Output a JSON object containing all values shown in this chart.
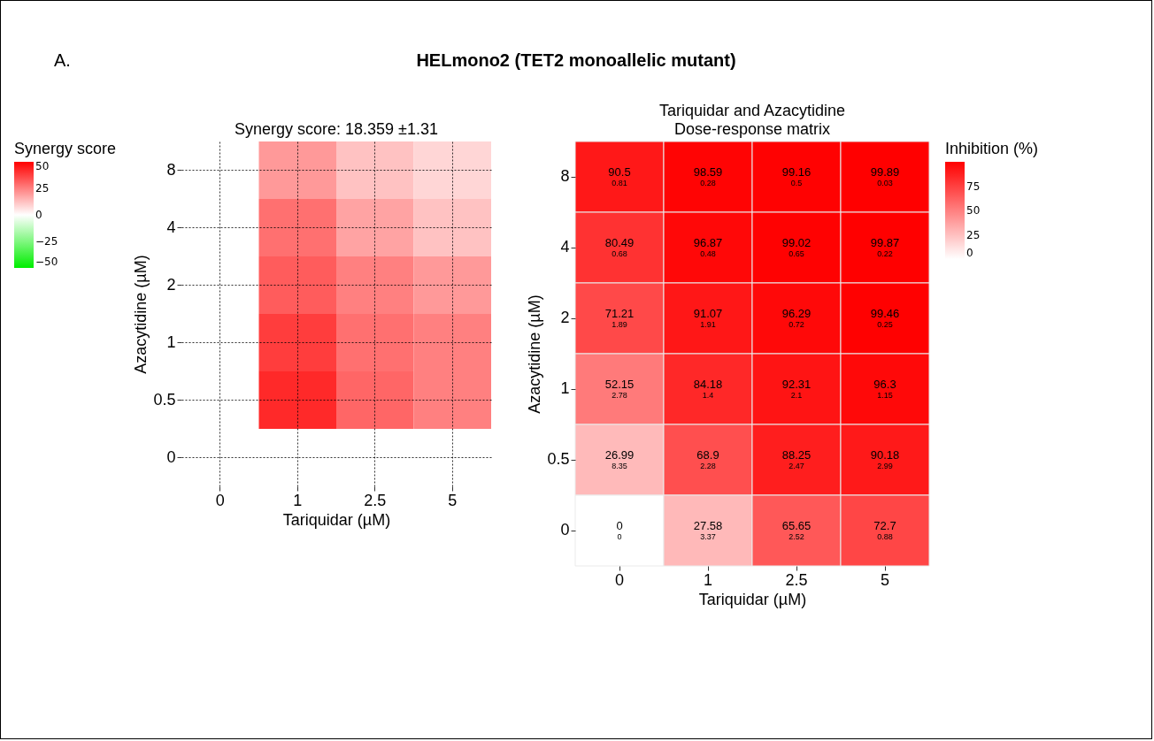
{
  "chart_data": [
    {
      "type": "heatmap",
      "title": "Synergy score: 18.359 ±1.31",
      "xlabel": "Tariquidar (µM)",
      "ylabel": "Azacytidine (µM)",
      "clabel": "Synergy score",
      "annotations": [
        "A.",
        "HELmono2 (TET2 monoallelic mutant)"
      ],
      "categories": [
        "0",
        "1",
        "2.5",
        "5"
      ],
      "y_categories": [
        "8",
        "4",
        "2",
        "1",
        "0.5",
        "0"
      ],
      "cells": [
        [
          0,
          20,
          12,
          8
        ],
        [
          0,
          28,
          18,
          12
        ],
        [
          0,
          32,
          25,
          20
        ],
        [
          0,
          38,
          28,
          25
        ],
        [
          0,
          42,
          30,
          25
        ],
        [
          0,
          0,
          0,
          0
        ]
      ],
      "clim": [
        -50,
        50
      ],
      "cticks": [
        -50,
        -25,
        0,
        25,
        50
      ],
      "grid": true
    },
    {
      "type": "heatmap",
      "title": "Tariquidar and Azacytidine",
      "subtitle": "Dose-response matrix",
      "xlabel": "Tariquidar (µM)",
      "ylabel": "Azacytidine (µM)",
      "clabel": "Inhibition (%)",
      "categories": [
        "0",
        "1",
        "2.5",
        "5"
      ],
      "y_categories": [
        "8",
        "4",
        "2",
        "1",
        "0.5",
        "0"
      ],
      "cells": [
        [
          90.5,
          98.59,
          99.16,
          99.89
        ],
        [
          80.49,
          96.87,
          99.02,
          99.87
        ],
        [
          71.21,
          91.07,
          96.29,
          99.46
        ],
        [
          52.15,
          84.18,
          92.31,
          96.3
        ],
        [
          26.99,
          68.9,
          88.25,
          90.18
        ],
        [
          0,
          27.58,
          65.65,
          72.7
        ]
      ],
      "cell_labels": [
        [
          "90.5\n0.81",
          "98.59\n0.28",
          "99.16\n0.5",
          "99.89\n0.03"
        ],
        [
          "80.49\n0.68",
          "96.87\n0.48",
          "99.02\n0.65",
          "99.87\n0.22"
        ],
        [
          "71.21\n1.89",
          "91.07\n1.91",
          "96.29\n0.72",
          "99.46\n0.25"
        ],
        [
          "52.15\n2.78",
          "84.18\n1.4",
          "92.31\n2.1",
          "96.3\n1.15"
        ],
        [
          "26.99\n8.35",
          "68.9\n2.28",
          "88.25\n2.47",
          "90.18\n2.99"
        ],
        [
          "0\n0",
          "27.58\n3.37",
          "65.65\n2.52",
          "72.7\n0.88"
        ]
      ],
      "clim": [
        0,
        100
      ],
      "cticks": [
        0,
        25,
        50,
        75
      ]
    }
  ]
}
